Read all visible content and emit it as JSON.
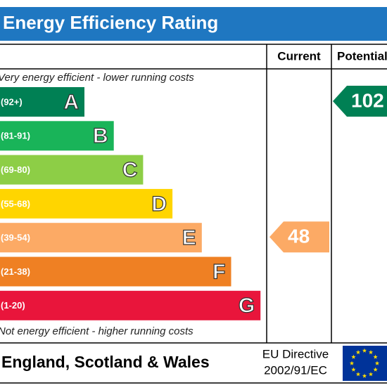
{
  "title": "Energy Efficiency Rating",
  "columns": [
    "Current",
    "Potential"
  ],
  "top_note": "Very energy efficient - lower running costs",
  "bottom_note": "Not energy efficient - higher running costs",
  "bands": [
    {
      "range": "(92+)",
      "letter": "A",
      "color": "#008054"
    },
    {
      "range": "(81-91)",
      "letter": "B",
      "color": "#19b459"
    },
    {
      "range": "(69-80)",
      "letter": "C",
      "color": "#8dce46"
    },
    {
      "range": "(55-68)",
      "letter": "D",
      "color": "#ffd500"
    },
    {
      "range": "(39-54)",
      "letter": "E",
      "color": "#fcaa65"
    },
    {
      "range": "(21-38)",
      "letter": "F",
      "color": "#ef8023"
    },
    {
      "range": "(1-20)",
      "letter": "G",
      "color": "#e9153b"
    }
  ],
  "current": {
    "value": 48,
    "band": 4
  },
  "potential": {
    "value": 102,
    "band": 0
  },
  "footer": {
    "region": "England, Scotland & Wales",
    "directive": [
      "EU Directive",
      "2002/91/EC"
    ]
  }
}
